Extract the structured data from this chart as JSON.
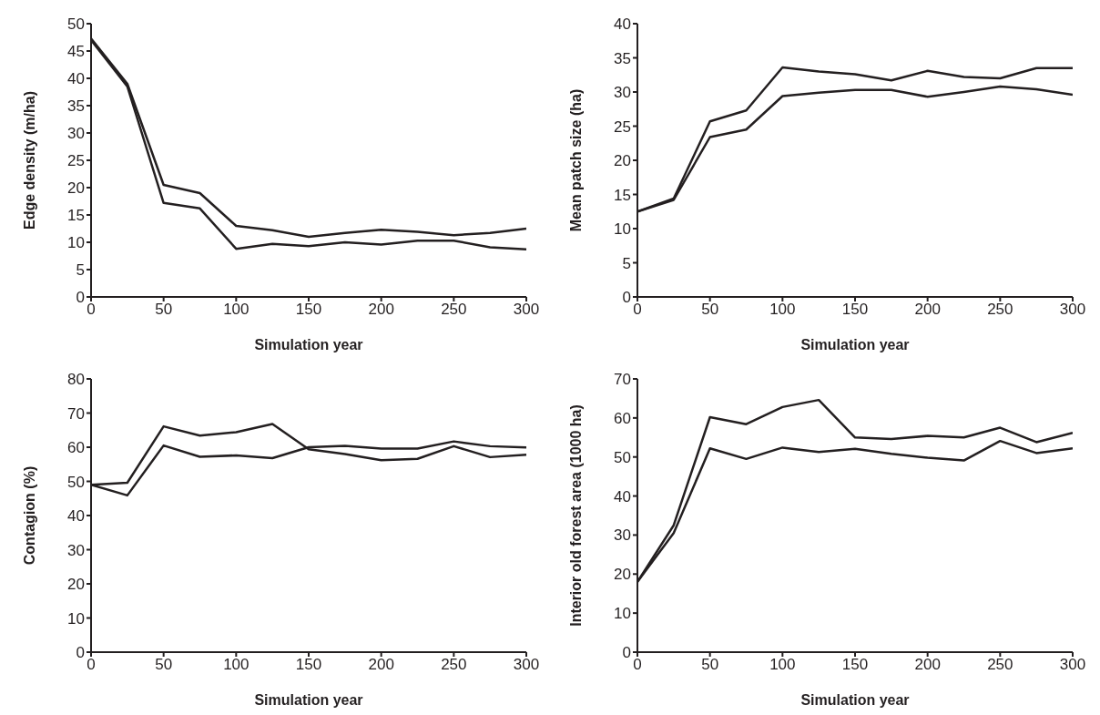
{
  "chart_data": [
    {
      "type": "line",
      "xlabel": "Simulation year",
      "ylabel": "Edge density (m/ha)",
      "x": [
        0,
        25,
        50,
        75,
        100,
        125,
        150,
        175,
        200,
        225,
        250,
        275,
        300
      ],
      "xlim": [
        0,
        300
      ],
      "xticks": [
        0,
        50,
        100,
        150,
        200,
        250,
        300
      ],
      "ylim": [
        0,
        50
      ],
      "yticks": [
        0,
        5,
        10,
        15,
        20,
        25,
        30,
        35,
        40,
        45,
        50
      ],
      "grid": false,
      "legend": false,
      "marker": "none",
      "line_style": "solid",
      "series": [
        {
          "color": "#231f20",
          "values": [
            47.3,
            39,
            20.5,
            19,
            13,
            12.2,
            11,
            11.7,
            12.3,
            11.9,
            11.3,
            11.7,
            12.5
          ]
        },
        {
          "color": "#231f20",
          "values": [
            47,
            38.5,
            17.2,
            16.2,
            8.8,
            9.7,
            9.3,
            10,
            9.6,
            10.3,
            10.3,
            9.1,
            8.7
          ]
        }
      ]
    },
    {
      "type": "line",
      "xlabel": "Simulation year",
      "ylabel": "Mean patch size (ha)",
      "x": [
        0,
        25,
        50,
        75,
        100,
        125,
        150,
        175,
        200,
        225,
        250,
        275,
        300
      ],
      "xlim": [
        0,
        300
      ],
      "xticks": [
        0,
        50,
        100,
        150,
        200,
        250,
        300
      ],
      "ylim": [
        0,
        40
      ],
      "yticks": [
        0,
        5,
        10,
        15,
        20,
        25,
        30,
        35,
        40
      ],
      "grid": false,
      "legend": false,
      "marker": "none",
      "line_style": "solid",
      "series": [
        {
          "color": "#231f20",
          "values": [
            12.5,
            14.4,
            25.7,
            27.3,
            33.6,
            33,
            32.6,
            31.7,
            33.1,
            32.2,
            32,
            33.5,
            33.5
          ]
        },
        {
          "color": "#231f20",
          "values": [
            12.5,
            14.2,
            23.4,
            24.5,
            29.4,
            29.9,
            30.3,
            30.3,
            29.3,
            30,
            30.8,
            30.4,
            29.6
          ]
        }
      ]
    },
    {
      "type": "line",
      "xlabel": "Simulation year",
      "ylabel": "Contagion (%)",
      "x": [
        0,
        25,
        50,
        75,
        100,
        125,
        150,
        175,
        200,
        225,
        250,
        275,
        300
      ],
      "xlim": [
        0,
        300
      ],
      "xticks": [
        0,
        50,
        100,
        150,
        200,
        250,
        300
      ],
      "ylim": [
        0,
        80
      ],
      "yticks": [
        0,
        10,
        20,
        30,
        40,
        50,
        60,
        70,
        80
      ],
      "grid": false,
      "legend": false,
      "marker": "none",
      "line_style": "solid",
      "series": [
        {
          "color": "#231f20",
          "values": [
            49,
            49.6,
            66.1,
            63.4,
            64.4,
            66.8,
            59.4,
            58,
            56.2,
            56.6,
            60.3,
            57.1,
            57.8
          ]
        },
        {
          "color": "#231f20",
          "values": [
            49,
            45.9,
            60.5,
            57.2,
            57.6,
            56.8,
            60,
            60.4,
            59.6,
            59.6,
            61.7,
            60.3,
            59.9
          ]
        }
      ]
    },
    {
      "type": "line",
      "xlabel": "Simulation year",
      "ylabel": "Interior old forest area (1000 ha)",
      "x": [
        0,
        25,
        50,
        75,
        100,
        125,
        150,
        175,
        200,
        225,
        250,
        275,
        300
      ],
      "xlim": [
        0,
        300
      ],
      "xticks": [
        0,
        50,
        100,
        150,
        200,
        250,
        300
      ],
      "ylim": [
        0,
        70
      ],
      "yticks": [
        0,
        10,
        20,
        30,
        40,
        50,
        60,
        70
      ],
      "grid": false,
      "legend": false,
      "marker": "none",
      "line_style": "solid",
      "series": [
        {
          "color": "#231f20",
          "values": [
            18,
            32.5,
            60.2,
            58.4,
            62.8,
            64.6,
            55,
            54.6,
            55.4,
            55,
            57.5,
            53.8,
            56.2
          ]
        },
        {
          "color": "#231f20",
          "values": [
            18,
            30.5,
            52.2,
            49.5,
            52.4,
            51.3,
            52.1,
            50.8,
            49.8,
            49.1,
            54.1,
            51,
            52.2
          ]
        }
      ]
    }
  ]
}
